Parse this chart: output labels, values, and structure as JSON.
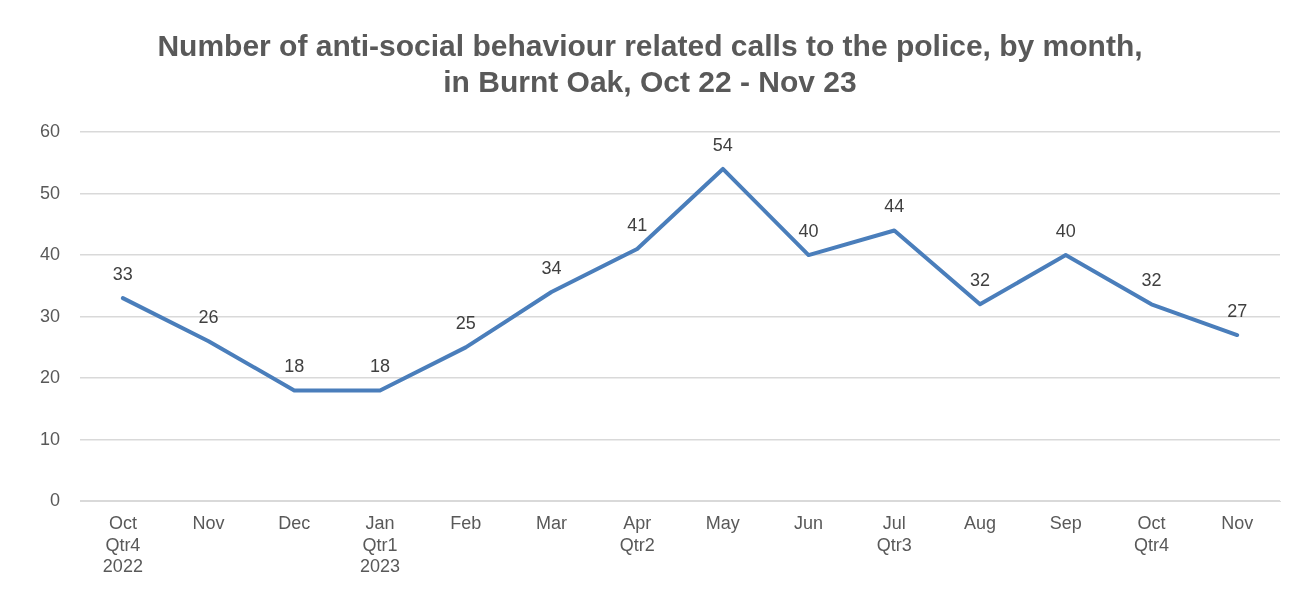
{
  "chart_data": {
    "type": "line",
    "title": "Number of anti-social behaviour related calls to the police, by month, in Burnt Oak, Oct 22 - Nov 23",
    "categories": [
      "Oct\nQtr4\n2022",
      "Nov",
      "Dec",
      "Jan\nQtr1\n2023",
      "Feb",
      "Mar",
      "Apr\nQtr2",
      "May",
      "Jun",
      "Jul\nQtr3",
      "Aug",
      "Sep",
      "Oct\nQtr4",
      "Nov"
    ],
    "series": [
      {
        "color": "#4a7ebb",
        "values": [
          33,
          26,
          18,
          18,
          25,
          34,
          41,
          54,
          40,
          44,
          32,
          40,
          32,
          27
        ]
      }
    ],
    "ylim": [
      0,
      60
    ],
    "yticks": [
      0,
      10,
      20,
      30,
      40,
      50,
      60
    ],
    "grid": "y",
    "legend": false,
    "marker": "none",
    "line_style": "solid",
    "data_labels": true
  }
}
